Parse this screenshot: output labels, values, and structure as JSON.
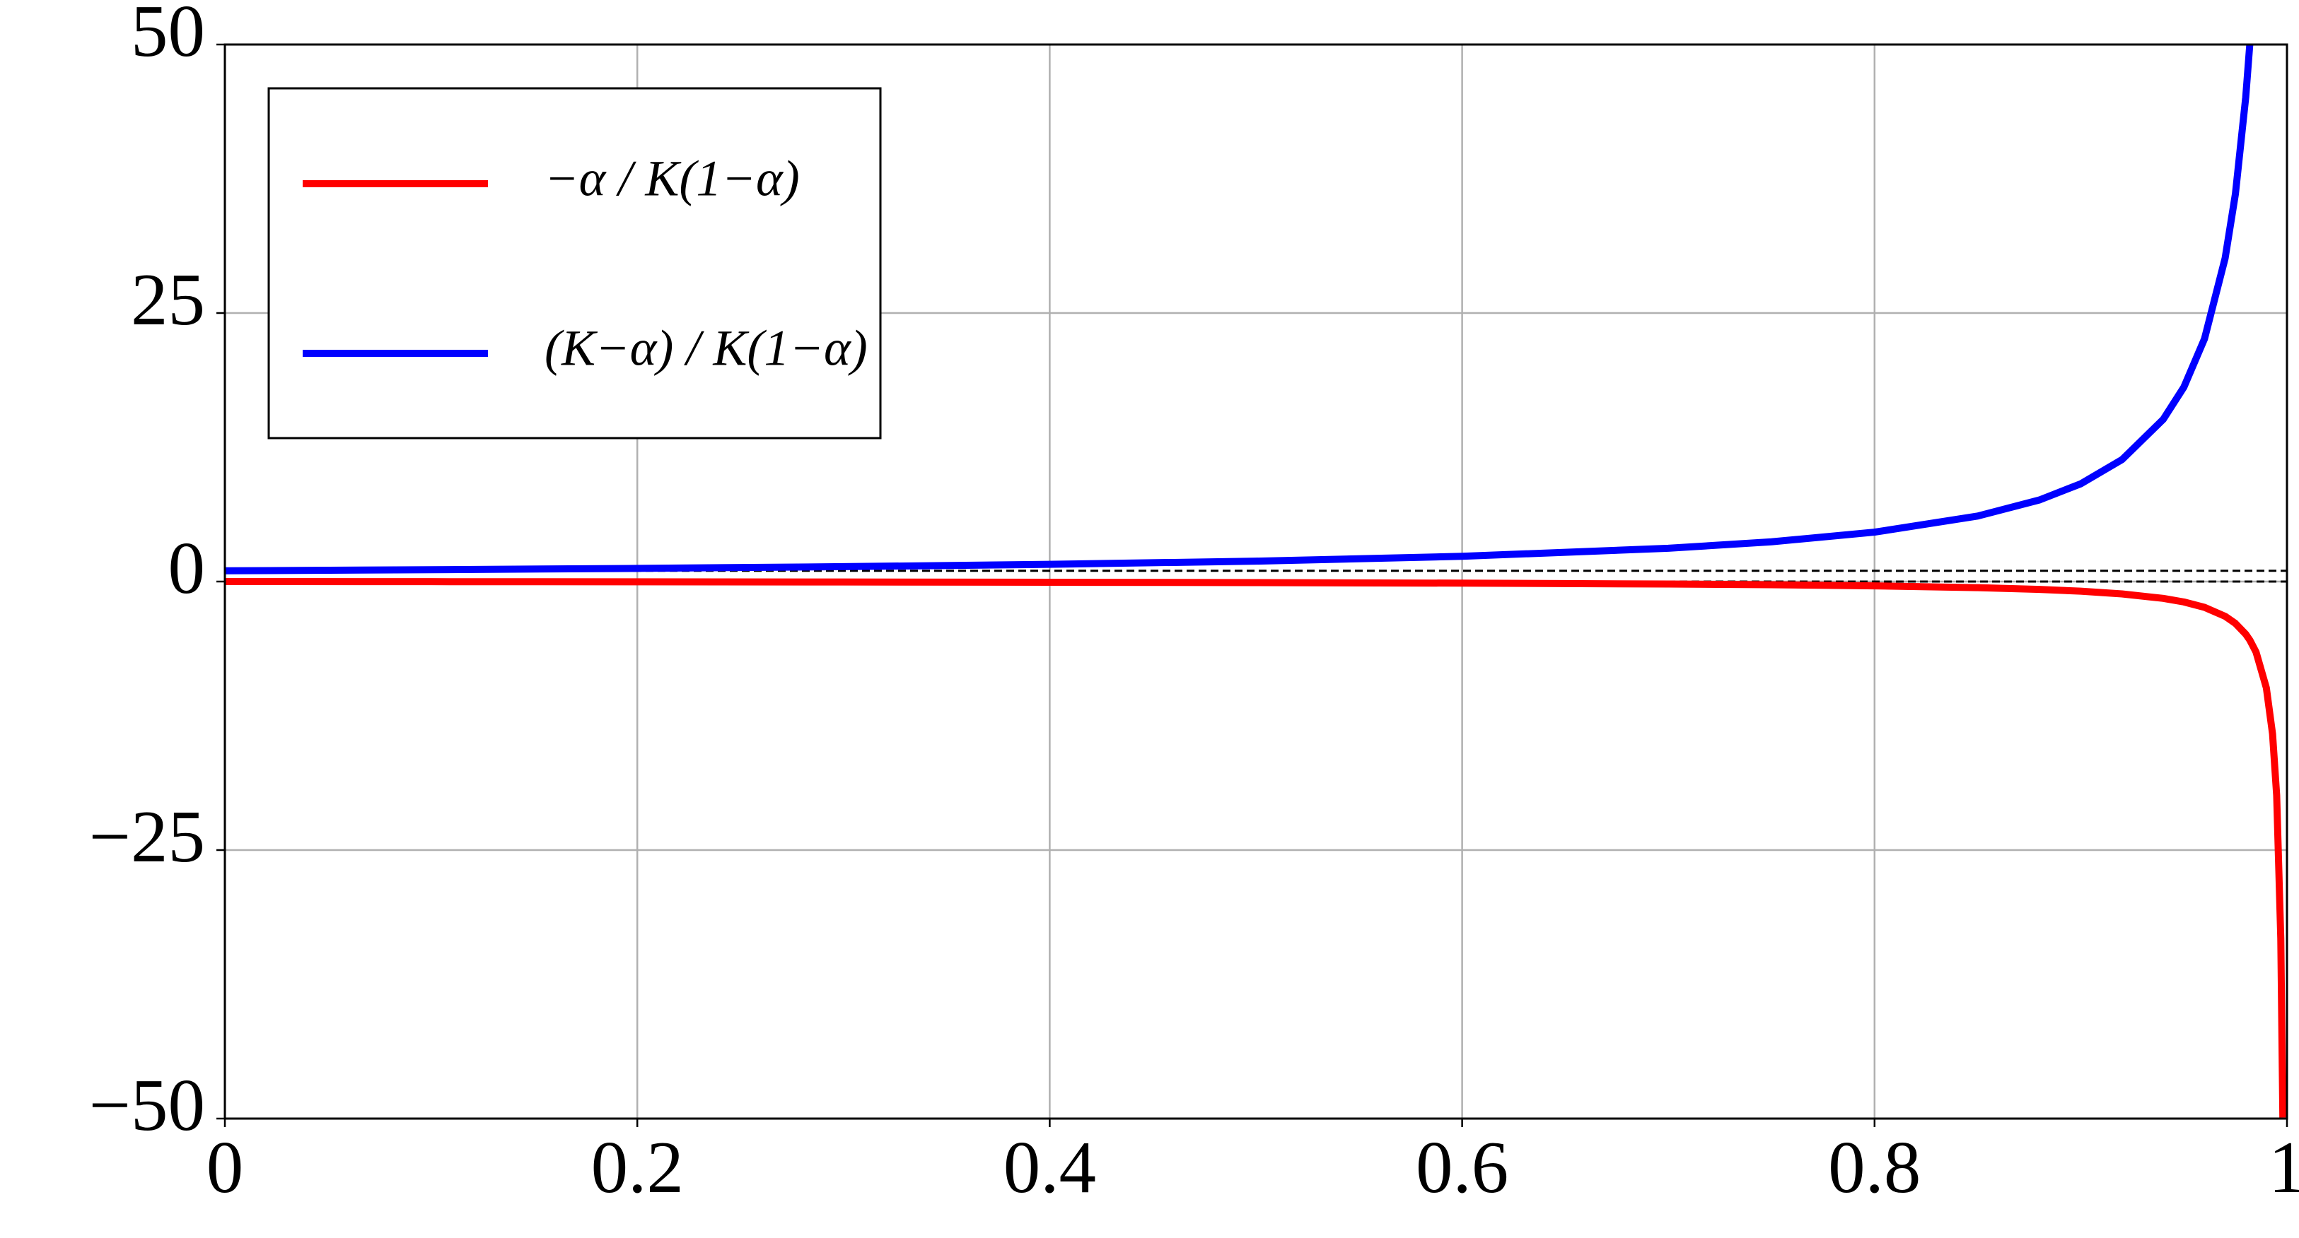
{
  "chart_data": {
    "type": "line",
    "x": [
      0,
      0.1,
      0.2,
      0.3,
      0.4,
      0.5,
      0.6,
      0.7,
      0.75,
      0.8,
      0.85,
      0.88,
      0.9,
      0.92,
      0.94,
      0.95,
      0.96,
      0.97,
      0.975,
      0.98,
      0.982,
      0.985,
      0.99,
      0.993,
      0.995,
      0.997,
      0.998
    ],
    "series": [
      {
        "name": "−α / K(1−α)",
        "color": "#ff0000",
        "values": [
          0,
          -0.0111,
          -0.025,
          -0.0429,
          -0.0667,
          -0.1,
          -0.15,
          -0.2333,
          -0.3,
          -0.4,
          -0.5667,
          -0.7333,
          -0.9,
          -1.15,
          -1.5667,
          -1.9,
          -2.4,
          -3.2333,
          -3.9,
          -4.9,
          -5.4556,
          -6.5667,
          -9.9,
          -14.186,
          -19.9,
          -33.233,
          -49.9
        ]
      },
      {
        "name": "(K−α) / K(1−α)",
        "color": "#0000ff",
        "values": [
          1,
          1.1,
          1.225,
          1.386,
          1.6,
          1.9,
          2.35,
          3.1,
          3.7,
          4.6,
          6.1,
          7.6,
          9.1,
          11.35,
          15.1,
          18.1,
          22.6,
          30.1,
          36.1,
          45.1,
          50.1,
          null,
          null,
          null,
          null,
          null,
          null
        ]
      }
    ],
    "hlines": [
      0,
      1
    ],
    "xlim": [
      0,
      1
    ],
    "xticks": [
      0,
      0.2,
      0.4,
      0.6,
      0.8,
      1
    ],
    "ylim": [
      -50,
      50
    ],
    "yticks": [
      {
        "value": -50,
        "label": "−50"
      },
      {
        "value": -25,
        "label": "−25"
      },
      0,
      25,
      50
    ],
    "grid": true,
    "legend": "upper left"
  }
}
